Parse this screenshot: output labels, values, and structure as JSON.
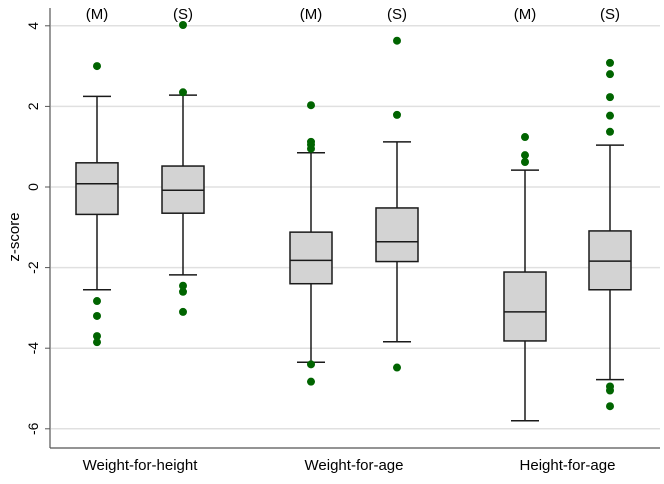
{
  "chart_data": {
    "type": "box",
    "title": "",
    "ylabel": "z-score",
    "xlabel": "",
    "ylim": [
      -6.48,
      4.5
    ],
    "yticks": [
      4,
      2,
      0,
      -2,
      -4,
      -6
    ],
    "ytick_labels": [
      "4",
      "2",
      "0",
      "-2",
      "-4",
      "-6"
    ],
    "grid": true,
    "groups": [
      "Weight-for-height",
      "Weight-for-age",
      "Height-for-age"
    ],
    "colors": {
      "box_fill": "#d3d3d3",
      "outlier": "#006400",
      "grid": "#e0e0e0",
      "line": "#1a1a1a"
    },
    "boxes": [
      {
        "group": 0,
        "label": "(M)",
        "whisker_high": 2.25,
        "q3": 0.6,
        "median": 0.08,
        "q1": -0.68,
        "whisker_low": -2.55,
        "outliers": [
          3.0,
          -2.83,
          -3.2,
          -3.7,
          -3.85
        ]
      },
      {
        "group": 0,
        "label": "(S)",
        "whisker_high": 2.28,
        "q3": 0.52,
        "median": -0.08,
        "q1": -0.65,
        "whisker_low": -2.18,
        "outliers": [
          4.02,
          2.35,
          -2.45,
          -2.6,
          -3.1
        ]
      },
      {
        "group": 1,
        "label": "(M)",
        "whisker_high": 0.85,
        "q3": -1.12,
        "median": -1.82,
        "q1": -2.4,
        "whisker_low": -4.35,
        "outliers": [
          2.03,
          1.12,
          1.05,
          0.95,
          -4.4,
          -4.83
        ]
      },
      {
        "group": 1,
        "label": "(S)",
        "whisker_high": 1.12,
        "q3": -0.52,
        "median": -1.36,
        "q1": -1.85,
        "whisker_low": -3.84,
        "outliers": [
          3.63,
          1.79,
          -4.48
        ]
      },
      {
        "group": 2,
        "label": "(M)",
        "whisker_high": 0.42,
        "q3": -2.11,
        "median": -3.1,
        "q1": -3.82,
        "whisker_low": -5.8,
        "outliers": [
          1.24,
          0.79,
          0.62
        ]
      },
      {
        "group": 2,
        "label": "(S)",
        "whisker_high": 1.04,
        "q3": -1.09,
        "median": -1.84,
        "q1": -2.55,
        "whisker_low": -4.78,
        "outliers": [
          3.08,
          2.8,
          2.23,
          1.77,
          1.37,
          -4.95,
          -5.05,
          -5.44
        ]
      }
    ]
  }
}
